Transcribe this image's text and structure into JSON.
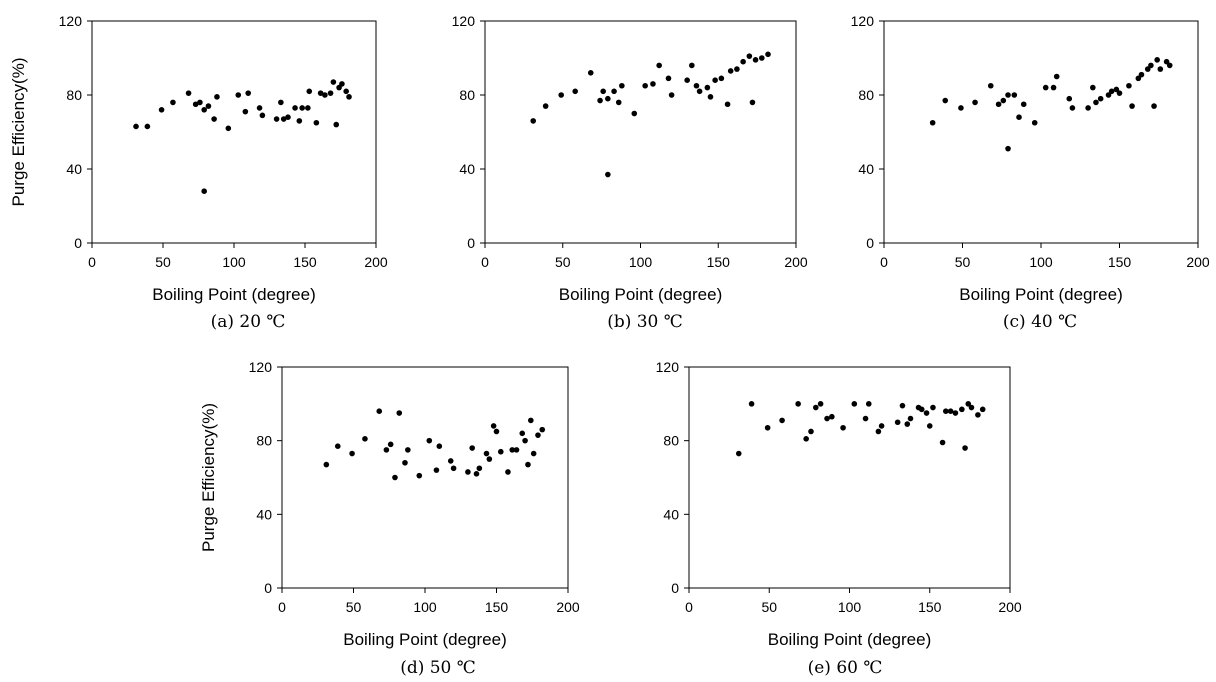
{
  "figure": {
    "panels": [
      {
        "id": "a",
        "caption": "(a) 20 ℃"
      },
      {
        "id": "b",
        "caption": "(b) 30 ℃"
      },
      {
        "id": "c",
        "caption": "(c) 40 ℃"
      },
      {
        "id": "d",
        "caption": "(d) 50 ℃"
      },
      {
        "id": "e",
        "caption": "(e) 60 ℃"
      }
    ]
  },
  "chart_data": [
    {
      "type": "scatter",
      "title": "",
      "caption": "(a) 20 ℃",
      "xlabel": "Boiling Point (degree)",
      "ylabel": "Purge Efficiency(%)",
      "xlim": [
        0,
        200
      ],
      "ylim": [
        0,
        120
      ],
      "xticks": [
        "0",
        "50",
        "100",
        "150",
        "200"
      ],
      "yticks": [
        "0",
        "40",
        "80",
        "120"
      ],
      "grid": false,
      "x": [
        31,
        39,
        49,
        57,
        68,
        73,
        76,
        79,
        82,
        86,
        88,
        96,
        103,
        108,
        110,
        118,
        120,
        130,
        133,
        135,
        138,
        143,
        146,
        148,
        152,
        153,
        158,
        161,
        164,
        168,
        170,
        172,
        174,
        176,
        179,
        181,
        79
      ],
      "y": [
        63,
        63,
        72,
        76,
        81,
        75,
        76,
        72,
        74,
        67,
        79,
        62,
        80,
        71,
        81,
        73,
        69,
        67,
        76,
        67,
        68,
        73,
        66,
        73,
        73,
        82,
        65,
        81,
        80,
        81,
        87,
        64,
        84,
        86,
        82,
        79,
        28
      ]
    },
    {
      "type": "scatter",
      "title": "",
      "caption": "(b) 30 ℃",
      "xlabel": "Boiling Point (degree)",
      "ylabel": "",
      "xlim": [
        0,
        200
      ],
      "ylim": [
        0,
        120
      ],
      "xticks": [
        "0",
        "50",
        "100",
        "150",
        "200"
      ],
      "yticks": [
        "0",
        "40",
        "80",
        "120"
      ],
      "grid": false,
      "x": [
        31,
        39,
        49,
        58,
        68,
        74,
        76,
        79,
        83,
        86,
        88,
        96,
        103,
        108,
        112,
        118,
        120,
        130,
        133,
        136,
        138,
        143,
        145,
        148,
        152,
        156,
        158,
        162,
        166,
        170,
        172,
        174,
        178,
        182,
        79
      ],
      "y": [
        66,
        74,
        80,
        82,
        92,
        77,
        82,
        78,
        82,
        76,
        85,
        70,
        85,
        86,
        96,
        89,
        80,
        88,
        96,
        85,
        82,
        84,
        79,
        88,
        89,
        75,
        93,
        94,
        98,
        101,
        76,
        99,
        100,
        102,
        37
      ]
    },
    {
      "type": "scatter",
      "title": "",
      "caption": "(c) 40 ℃",
      "xlabel": "Boiling Point (degree)",
      "ylabel": "",
      "xlim": [
        0,
        200
      ],
      "ylim": [
        0,
        120
      ],
      "xticks": [
        "0",
        "50",
        "100",
        "150",
        "200"
      ],
      "yticks": [
        "0",
        "40",
        "80",
        "120"
      ],
      "grid": false,
      "x": [
        31,
        39,
        49,
        58,
        68,
        73,
        76,
        79,
        83,
        86,
        89,
        96,
        103,
        108,
        110,
        118,
        120,
        130,
        133,
        135,
        138,
        143,
        145,
        148,
        150,
        156,
        158,
        162,
        164,
        168,
        170,
        172,
        174,
        176,
        180,
        182,
        79
      ],
      "y": [
        65,
        77,
        73,
        76,
        85,
        75,
        77,
        80,
        80,
        68,
        75,
        65,
        84,
        84,
        90,
        78,
        73,
        73,
        84,
        76,
        78,
        80,
        82,
        83,
        81,
        85,
        74,
        89,
        91,
        94,
        96,
        74,
        99,
        94,
        98,
        96,
        51
      ]
    },
    {
      "type": "scatter",
      "title": "",
      "caption": "(d) 50 ℃",
      "xlabel": "Boiling Point (degree)",
      "ylabel": "Purge Efficiency(%)",
      "xlim": [
        0,
        200
      ],
      "ylim": [
        0,
        120
      ],
      "xticks": [
        "0",
        "50",
        "100",
        "150",
        "200"
      ],
      "yticks": [
        "0",
        "40",
        "80",
        "120"
      ],
      "grid": false,
      "x": [
        31,
        39,
        49,
        58,
        68,
        73,
        76,
        79,
        82,
        86,
        88,
        96,
        103,
        108,
        110,
        118,
        120,
        130,
        133,
        136,
        138,
        143,
        145,
        148,
        150,
        153,
        158,
        161,
        164,
        168,
        170,
        172,
        174,
        176,
        179,
        182
      ],
      "y": [
        67,
        77,
        73,
        81,
        96,
        75,
        78,
        60,
        95,
        68,
        75,
        61,
        80,
        64,
        77,
        69,
        65,
        63,
        76,
        62,
        65,
        73,
        70,
        88,
        85,
        74,
        63,
        75,
        75,
        84,
        80,
        67,
        91,
        73,
        83,
        86
      ]
    },
    {
      "type": "scatter",
      "title": "",
      "caption": "(e) 60 ℃",
      "xlabel": "Boiling Point (degree)",
      "ylabel": "",
      "xlim": [
        0,
        200
      ],
      "ylim": [
        0,
        120
      ],
      "xticks": [
        "0",
        "50",
        "100",
        "150",
        "200"
      ],
      "yticks": [
        "0",
        "40",
        "80",
        "120"
      ],
      "grid": false,
      "x": [
        31,
        39,
        49,
        58,
        68,
        73,
        76,
        79,
        82,
        86,
        89,
        96,
        103,
        110,
        112,
        118,
        120,
        130,
        133,
        136,
        138,
        143,
        145,
        148,
        150,
        152,
        158,
        160,
        163,
        166,
        170,
        172,
        174,
        176,
        180,
        183
      ],
      "y": [
        73,
        100,
        87,
        91,
        100,
        81,
        85,
        98,
        100,
        92,
        93,
        87,
        100,
        92,
        100,
        85,
        88,
        90,
        99,
        89,
        92,
        98,
        97,
        95,
        88,
        98,
        79,
        96,
        96,
        95,
        97,
        76,
        100,
        98,
        94,
        97
      ]
    }
  ]
}
